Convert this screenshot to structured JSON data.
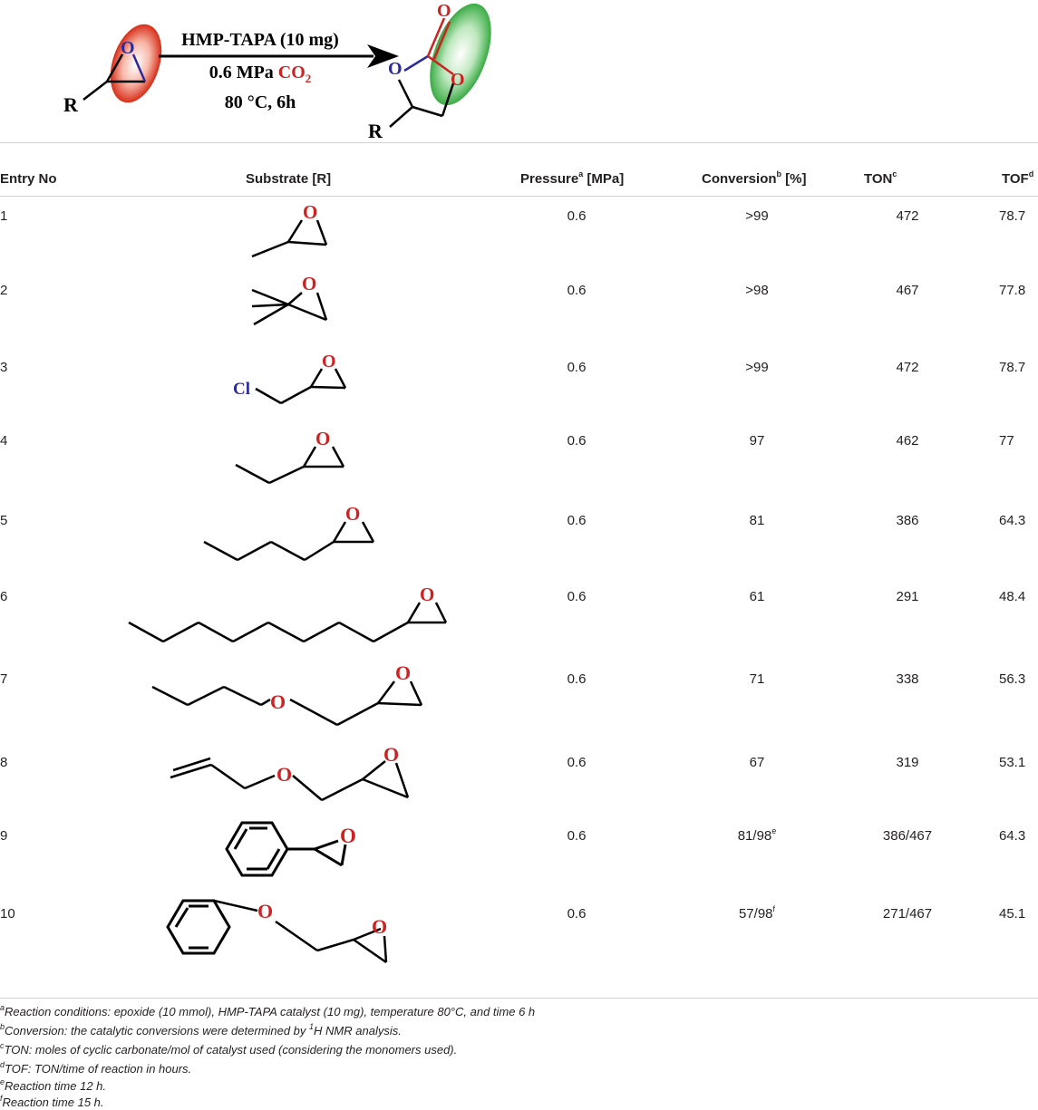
{
  "scheme": {
    "reagent_line1": "HMP-TAPA (10 mg)",
    "reagent_line2_prefix": "0.6 MPa ",
    "reagent_line2_co2": "CO",
    "reagent_line2_co2_sub": "2",
    "reagent_line3": "80 °C, 6h",
    "r_label": "R",
    "o_label": "O",
    "colors": {
      "red": "#cc2222",
      "blue": "#2b2b9b",
      "green": "#35b045"
    }
  },
  "table": {
    "headers": {
      "entry": "Entry No",
      "substrate": "Substrate [R]",
      "pressure": "Pressure",
      "pressure_sup": "a",
      "pressure_unit": " [MPa]",
      "conversion": "Conversion",
      "conversion_sup": "b",
      "conversion_unit": " [%]",
      "ton": "TON",
      "ton_sup": "c",
      "tof": "TOF",
      "tof_sup": "d"
    },
    "rows": [
      {
        "entry": "1",
        "pressure": "0.6",
        "conversion": ">99",
        "conversion_sup": "",
        "ton": "472",
        "tof": "78.7"
      },
      {
        "entry": "2",
        "pressure": "0.6",
        "conversion": ">98",
        "conversion_sup": "",
        "ton": "467",
        "tof": "77.8"
      },
      {
        "entry": "3",
        "pressure": "0.6",
        "conversion": ">99",
        "conversion_sup": "",
        "ton": "472",
        "tof": "78.7"
      },
      {
        "entry": "4",
        "pressure": "0.6",
        "conversion": "97",
        "conversion_sup": "",
        "ton": "462",
        "tof": "77"
      },
      {
        "entry": "5",
        "pressure": "0.6",
        "conversion": "81",
        "conversion_sup": "",
        "ton": "386",
        "tof": "64.3"
      },
      {
        "entry": "6",
        "pressure": "0.6",
        "conversion": "61",
        "conversion_sup": "",
        "ton": "291",
        "tof": "48.4"
      },
      {
        "entry": "7",
        "pressure": "0.6",
        "conversion": "71",
        "conversion_sup": "",
        "ton": "338",
        "tof": "56.3"
      },
      {
        "entry": "8",
        "pressure": "0.6",
        "conversion": "67",
        "conversion_sup": "",
        "ton": "319",
        "tof": "53.1"
      },
      {
        "entry": "9",
        "pressure": "0.6",
        "conversion": "81/98",
        "conversion_sup": "e",
        "ton": "386/467",
        "tof": "64.3"
      },
      {
        "entry": "10",
        "pressure": "0.6",
        "conversion": "57/98",
        "conversion_sup": "f",
        "ton": "271/467",
        "tof": "45.1"
      }
    ],
    "substrate_labels": {
      "o": "O",
      "cl": "Cl"
    }
  },
  "footnotes": [
    {
      "sup": "a",
      "text": "Reaction conditions: epoxide (10 mmol), HMP-TAPA catalyst (10 mg), temperature 80°C, and time 6 h"
    },
    {
      "sup": "b",
      "text_before": "Conversion: the catalytic conversions were determined by ",
      "text_sup": "1",
      "text_after": "H NMR analysis."
    },
    {
      "sup": "c",
      "text": "TON: moles of cyclic carbonate/mol of catalyst used (considering the monomers used)."
    },
    {
      "sup": "d",
      "text": "TOF: TON/time of reaction in hours."
    },
    {
      "sup": "e",
      "text": "Reaction time 12 h."
    },
    {
      "sup": "f",
      "text": "Reaction time 15 h."
    }
  ]
}
